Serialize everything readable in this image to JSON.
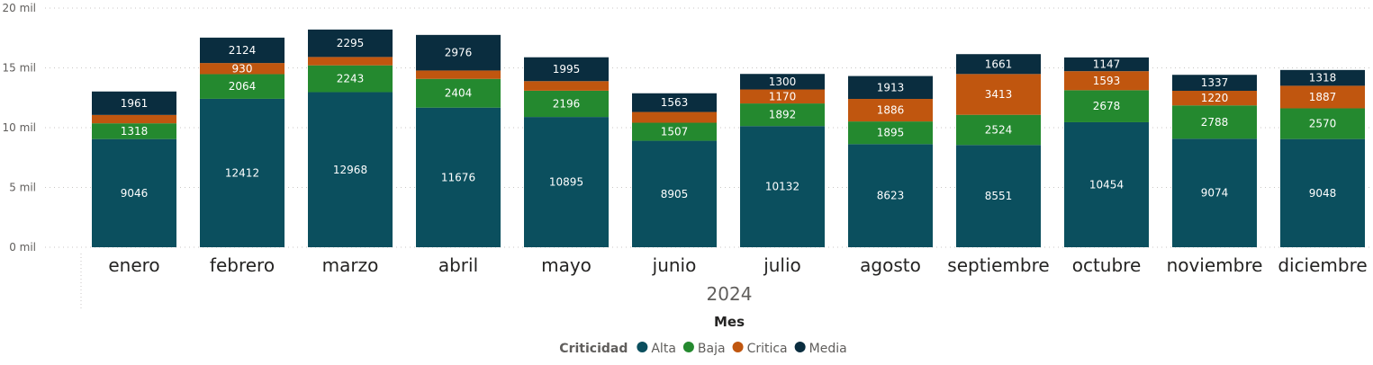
{
  "chart_data": {
    "type": "bar",
    "stacked": true,
    "title": "",
    "xlabel": "Mes",
    "x_group_label": "2024",
    "ylabel": "",
    "ylim": [
      0,
      20000
    ],
    "yticks": [
      {
        "value": 0,
        "label": "0 mil"
      },
      {
        "value": 5000,
        "label": "5 mil"
      },
      {
        "value": 10000,
        "label": "10 mil"
      },
      {
        "value": 15000,
        "label": "15 mil"
      },
      {
        "value": 20000,
        "label": "20 mil"
      }
    ],
    "categories": [
      "enero",
      "febrero",
      "marzo",
      "abril",
      "mayo",
      "junio",
      "julio",
      "agosto",
      "septiembre",
      "octubre",
      "noviembre",
      "diciembre"
    ],
    "series": [
      {
        "name": "Alta",
        "color": "#0b4f5e",
        "values": [
          9046,
          12412,
          12968,
          11676,
          10895,
          8905,
          10132,
          8623,
          8551,
          10454,
          9074,
          9048
        ],
        "labels": [
          "9046",
          "12412",
          "12968",
          "11676",
          "10895",
          "8905",
          "10132",
          "8623",
          "8551",
          "10454",
          "9074",
          "9048"
        ]
      },
      {
        "name": "Baja",
        "color": "#24892f",
        "values": [
          1318,
          2064,
          2243,
          2404,
          2196,
          1507,
          1892,
          1895,
          2524,
          2678,
          2788,
          2570
        ],
        "labels": [
          "1318",
          "2064",
          "2243",
          "2404",
          "2196",
          "1507",
          "1892",
          "1895",
          "2524",
          "2678",
          "2788",
          "2570"
        ]
      },
      {
        "name": "Critica",
        "color": "#c0560f",
        "values": [
          700,
          930,
          700,
          700,
          800,
          900,
          1170,
          1886,
          3413,
          1593,
          1220,
          1887
        ],
        "labels": [
          "",
          "930",
          "",
          "",
          "",
          "",
          "1170",
          "1886",
          "3413",
          "1593",
          "1220",
          "1887"
        ]
      },
      {
        "name": "Media",
        "color": "#0a2d3f",
        "values": [
          1961,
          2124,
          2295,
          2976,
          1995,
          1563,
          1300,
          1913,
          1661,
          1147,
          1337,
          1318
        ],
        "labels": [
          "1961",
          "2124",
          "2295",
          "2976",
          "1995",
          "1563",
          "1300",
          "1913",
          "1661",
          "1147",
          "1337",
          "1318"
        ]
      }
    ],
    "legend": {
      "title": "Criticidad",
      "position": "bottom"
    },
    "grid": true
  }
}
